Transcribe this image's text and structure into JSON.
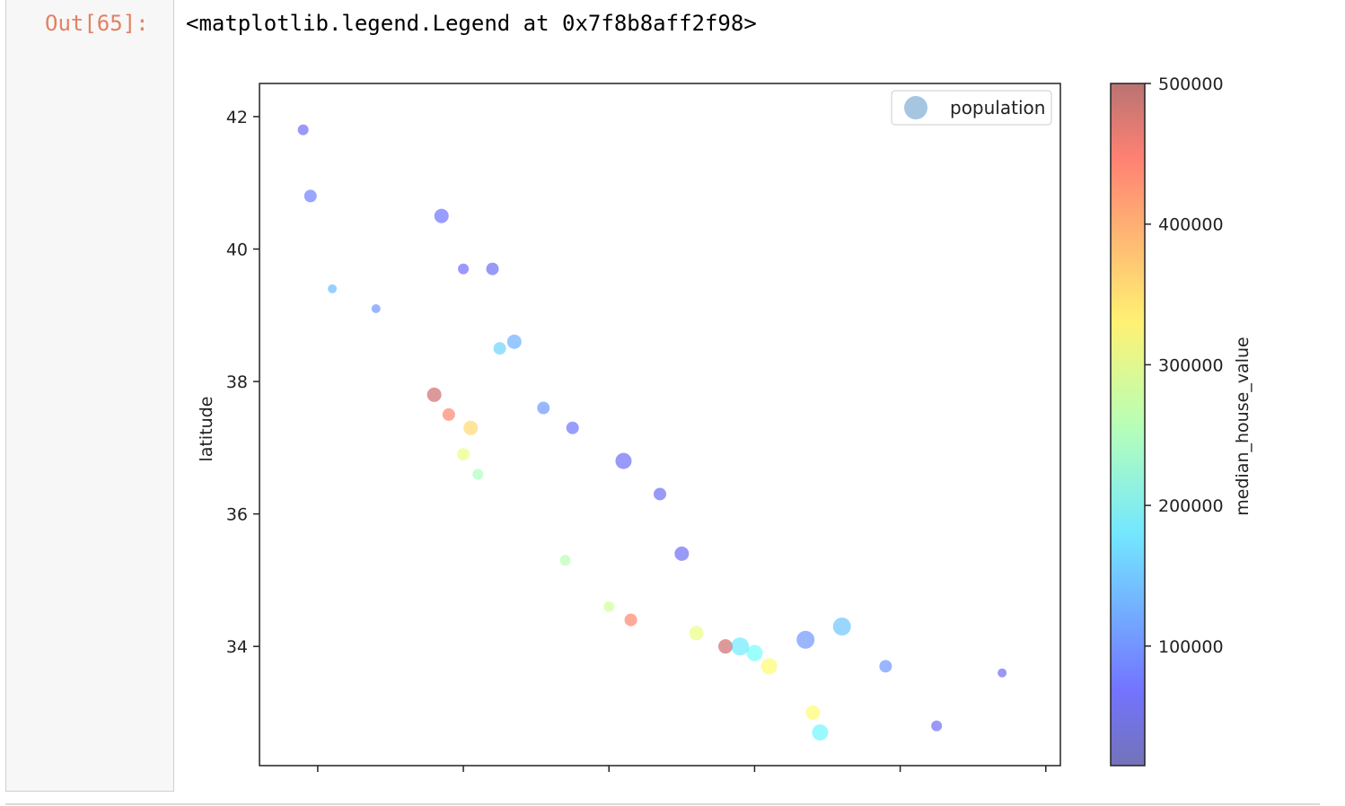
{
  "cell": {
    "prompt": "Out[65]:",
    "output_text": "<matplotlib.legend.Legend at 0x7f8b8aff2f98>"
  },
  "chart_data": {
    "type": "scatter",
    "title": "",
    "xlabel": "",
    "ylabel": "latitude",
    "xlim": [
      -124.8,
      -113.8
    ],
    "ylim": [
      32.2,
      42.5
    ],
    "yticks": [
      "42",
      "40",
      "38",
      "36",
      "34"
    ],
    "xticks_labels_visible": false,
    "grid": false,
    "legend": {
      "entries": [
        "population"
      ],
      "placement": "upper-right",
      "marker_color": "#8fb6d9"
    },
    "colorbar": {
      "label": "median_house_value",
      "min": 14999,
      "max": 500001,
      "ticks": [
        "500000",
        "400000",
        "300000",
        "200000",
        "100000"
      ],
      "colormap": "jet",
      "alpha": 0.4
    },
    "color_encodes": "median_house_value",
    "size_encodes": "population",
    "points": [
      {
        "lon": -124.2,
        "lat": 41.8,
        "val": 70000,
        "size": 6
      },
      {
        "lon": -124.1,
        "lat": 40.8,
        "val": 90000,
        "size": 7
      },
      {
        "lon": -123.8,
        "lat": 39.4,
        "val": 140000,
        "size": 5
      },
      {
        "lon": -123.2,
        "lat": 39.1,
        "val": 110000,
        "size": 5
      },
      {
        "lon": -122.3,
        "lat": 40.5,
        "val": 80000,
        "size": 8
      },
      {
        "lon": -122.0,
        "lat": 39.7,
        "val": 75000,
        "size": 6
      },
      {
        "lon": -121.6,
        "lat": 39.7,
        "val": 70000,
        "size": 7
      },
      {
        "lon": -121.3,
        "lat": 38.6,
        "val": 130000,
        "size": 8
      },
      {
        "lon": -121.5,
        "lat": 38.5,
        "val": 160000,
        "size": 7
      },
      {
        "lon": -122.4,
        "lat": 37.8,
        "val": 480000,
        "size": 8
      },
      {
        "lon": -122.2,
        "lat": 37.5,
        "val": 420000,
        "size": 7
      },
      {
        "lon": -121.9,
        "lat": 37.3,
        "val": 350000,
        "size": 8
      },
      {
        "lon": -122.0,
        "lat": 36.9,
        "val": 300000,
        "size": 7
      },
      {
        "lon": -121.8,
        "lat": 36.6,
        "val": 250000,
        "size": 6
      },
      {
        "lon": -120.9,
        "lat": 37.6,
        "val": 110000,
        "size": 7
      },
      {
        "lon": -120.5,
        "lat": 37.3,
        "val": 80000,
        "size": 7
      },
      {
        "lon": -119.8,
        "lat": 36.8,
        "val": 70000,
        "size": 9
      },
      {
        "lon": -119.3,
        "lat": 36.3,
        "val": 65000,
        "size": 7
      },
      {
        "lon": -119.0,
        "lat": 35.4,
        "val": 70000,
        "size": 8
      },
      {
        "lon": -120.6,
        "lat": 35.3,
        "val": 260000,
        "size": 6
      },
      {
        "lon": -120.0,
        "lat": 34.6,
        "val": 280000,
        "size": 6
      },
      {
        "lon": -119.7,
        "lat": 34.4,
        "val": 420000,
        "size": 7
      },
      {
        "lon": -118.8,
        "lat": 34.2,
        "val": 300000,
        "size": 8
      },
      {
        "lon": -118.4,
        "lat": 34.0,
        "val": 480000,
        "size": 8
      },
      {
        "lon": -118.2,
        "lat": 34.0,
        "val": 180000,
        "size": 10
      },
      {
        "lon": -118.0,
        "lat": 33.9,
        "val": 200000,
        "size": 9
      },
      {
        "lon": -117.8,
        "lat": 33.7,
        "val": 320000,
        "size": 9
      },
      {
        "lon": -117.3,
        "lat": 34.1,
        "val": 110000,
        "size": 10
      },
      {
        "lon": -117.2,
        "lat": 33.0,
        "val": 320000,
        "size": 8
      },
      {
        "lon": -117.1,
        "lat": 32.7,
        "val": 190000,
        "size": 9
      },
      {
        "lon": -116.2,
        "lat": 33.7,
        "val": 110000,
        "size": 7
      },
      {
        "lon": -115.5,
        "lat": 32.8,
        "val": 70000,
        "size": 6
      },
      {
        "lon": -114.6,
        "lat": 33.6,
        "val": 60000,
        "size": 5
      },
      {
        "lon": -116.8,
        "lat": 34.3,
        "val": 150000,
        "size": 10
      }
    ]
  }
}
